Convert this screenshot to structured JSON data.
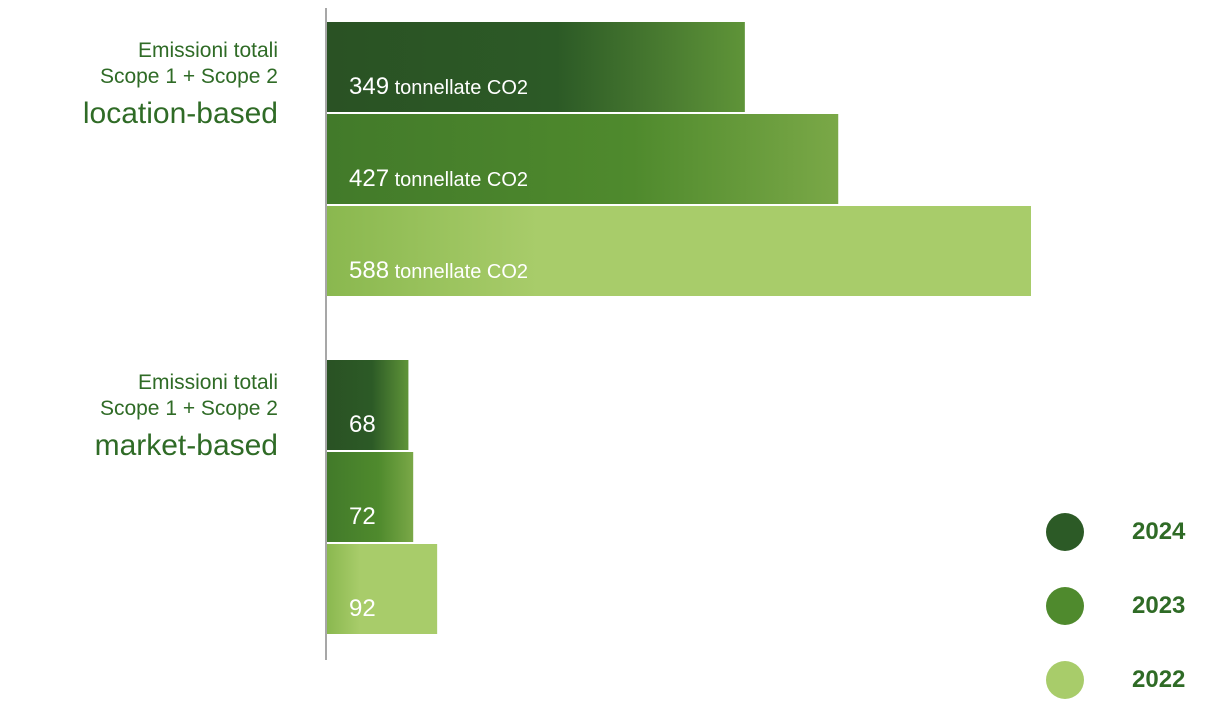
{
  "groups": [
    {
      "line1": "Emissioni totali",
      "line2": "Scope 1 + Scope 2",
      "line3": "location-based"
    },
    {
      "line1": "Emissioni totali",
      "line2": "Scope 1 + Scope 2",
      "line3": "market-based"
    }
  ],
  "legend": [
    {
      "label": "2024",
      "color": "#2c5a26"
    },
    {
      "label": "2023",
      "color": "#4f8a2d"
    },
    {
      "label": "2022",
      "color": "#a8cc6a"
    }
  ],
  "chart_data": {
    "type": "bar",
    "orientation": "horizontal",
    "categories": [
      "location-based",
      "market-based"
    ],
    "series": [
      {
        "name": "2024",
        "values": [
          349,
          68
        ],
        "color": "#2c5a26"
      },
      {
        "name": "2023",
        "values": [
          427,
          72
        ],
        "color": "#4f8a2d"
      },
      {
        "name": "2022",
        "values": [
          588,
          92
        ],
        "color": "#a8cc6a"
      }
    ],
    "value_labels": [
      [
        "349",
        "427",
        "588"
      ],
      [
        "68",
        "72",
        "92"
      ]
    ],
    "unit_suffix": "tonnellate CO2",
    "xlim": [
      0,
      588
    ],
    "grid": false,
    "legend_position": "bottom-right"
  }
}
